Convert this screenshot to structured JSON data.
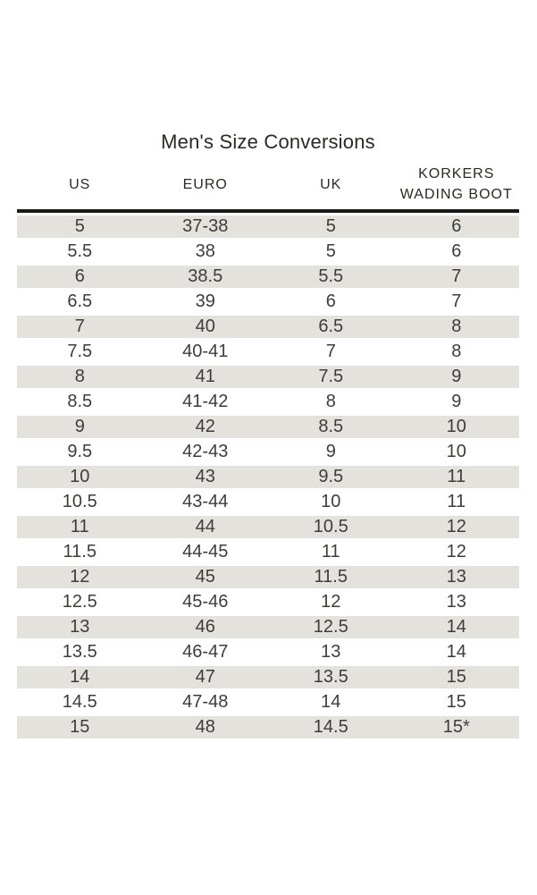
{
  "title": "Men's Size Conversions",
  "size_table": {
    "columns": [
      {
        "lines": [
          "US"
        ]
      },
      {
        "lines": [
          "EURO"
        ]
      },
      {
        "lines": [
          "UK"
        ]
      },
      {
        "lines": [
          "KORKERS",
          "WADING BOOT"
        ]
      }
    ],
    "rows": [
      [
        "5",
        "37-38",
        "5",
        "6"
      ],
      [
        "5.5",
        "38",
        "5",
        "6"
      ],
      [
        "6",
        "38.5",
        "5.5",
        "7"
      ],
      [
        "6.5",
        "39",
        "6",
        "7"
      ],
      [
        "7",
        "40",
        "6.5",
        "8"
      ],
      [
        "7.5",
        "40-41",
        "7",
        "8"
      ],
      [
        "8",
        "41",
        "7.5",
        "9"
      ],
      [
        "8.5",
        "41-42",
        "8",
        "9"
      ],
      [
        "9",
        "42",
        "8.5",
        "10"
      ],
      [
        "9.5",
        "42-43",
        "9",
        "10"
      ],
      [
        "10",
        "43",
        "9.5",
        "11"
      ],
      [
        "10.5",
        "43-44",
        "10",
        "11"
      ],
      [
        "11",
        "44",
        "10.5",
        "12"
      ],
      [
        "11.5",
        "44-45",
        "11",
        "12"
      ],
      [
        "12",
        "45",
        "11.5",
        "13"
      ],
      [
        "12.5",
        "45-46",
        "12",
        "13"
      ],
      [
        "13",
        "46",
        "12.5",
        "14"
      ],
      [
        "13.5",
        "46-47",
        "13",
        "14"
      ],
      [
        "14",
        "47",
        "13.5",
        "15"
      ],
      [
        "14.5",
        "47-48",
        "14",
        "15"
      ],
      [
        "15",
        "48",
        "14.5",
        "15*"
      ]
    ]
  },
  "colors": {
    "stripe": "#e4e2dd",
    "rule": "#1a1a19",
    "cell_text": "#3e3d3b",
    "heading_text": "#2a2926",
    "page_bg": "#ffffff"
  }
}
